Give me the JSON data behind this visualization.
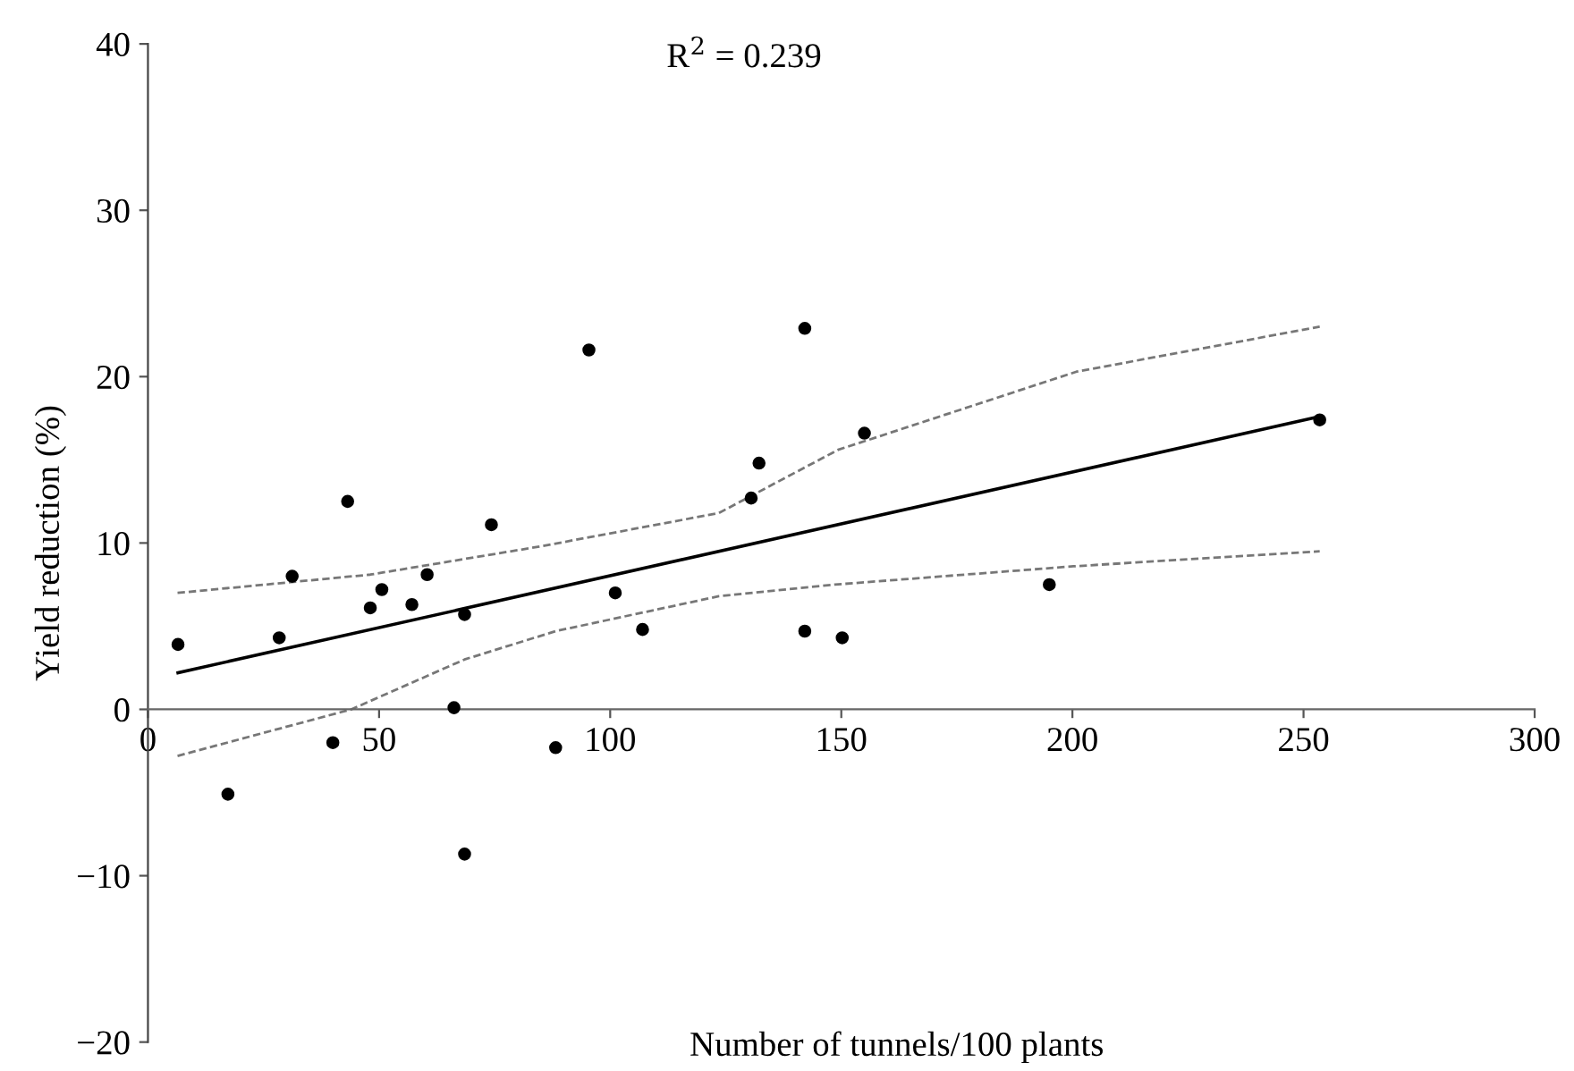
{
  "chart_data": {
    "type": "scatter",
    "xlabel": "Number of tunnels/100 plants",
    "ylabel": "Yield reduction (%)",
    "annotations": [
      "R$^{2}$ = 0.239"
    ],
    "xlim": [
      0,
      300
    ],
    "ylim": [
      -20,
      40
    ],
    "xticks": [
      0,
      50,
      100,
      150,
      200,
      250,
      300
    ],
    "yticks": [
      -20,
      -10,
      0,
      10,
      20,
      30,
      40
    ],
    "grid": false,
    "legend": false,
    "marker": "circle",
    "series": [
      {
        "color": "#000000",
        "x": [
          6.5,
          17.3,
          28.4,
          31.2,
          40,
          43.2,
          48.1,
          50.6,
          57.1,
          60.4,
          66.2,
          68.5,
          68.5,
          74.3,
          88.2,
          95.4,
          101.1,
          107,
          130.5,
          132.2,
          142.1,
          142.1,
          150.2,
          155,
          195,
          253.5
        ],
        "values": [
          3.9,
          -5.1,
          4.3,
          8.0,
          -2.0,
          12.5,
          6.1,
          7.2,
          6.3,
          8.1,
          0.1,
          5.7,
          -8.7,
          11.1,
          -2.3,
          21.6,
          7.0,
          4.8,
          12.7,
          14.8,
          22.9,
          4.7,
          4.3,
          16.6,
          7.5,
          17.4
        ]
      },
      {
        "type": "line",
        "color": "#000000",
        "line_style": "solid",
        "marker": "none",
        "x": [
          6.5,
          253.5
        ],
        "values": [
          2.2,
          17.6
        ]
      },
      {
        "type": "line",
        "color": "#777777",
        "line_style": "dashed",
        "marker": "none",
        "x": [
          6.4,
          48.1,
          85,
          123.5,
          149.3,
          200.9,
          253.5
        ],
        "values": [
          7.0,
          8.1,
          9.8,
          11.8,
          15.6,
          20.3,
          23.0
        ]
      },
      {
        "type": "line",
        "color": "#777777",
        "line_style": "dashed",
        "marker": "none",
        "x": [
          6.4,
          44,
          68.5,
          88.2,
          123.5,
          148.6,
          200.2,
          253.5
        ],
        "values": [
          -2.8,
          0,
          3.0,
          4.7,
          6.8,
          7.5,
          8.6,
          9.5
        ]
      }
    ]
  }
}
